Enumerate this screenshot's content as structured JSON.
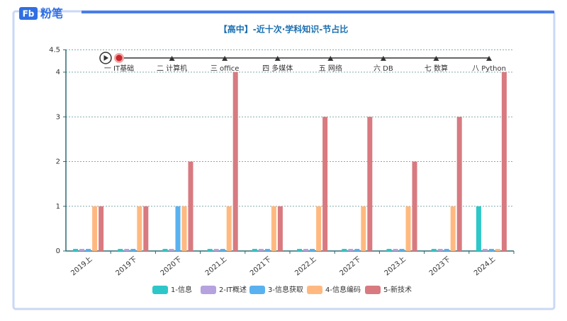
{
  "logo": {
    "mark": "Fb",
    "text": "粉笔"
  },
  "chart_data": {
    "type": "bar",
    "title": "【高中】-近十次·学科知识-节占比",
    "timeline": [
      "一 IT基础",
      "二 计算机",
      "三 office",
      "四 多媒体",
      "五 网络",
      "六 DB",
      "七 数算",
      "八 Python"
    ],
    "categories": [
      "2019上",
      "2019下",
      "2020下",
      "2021上",
      "2021下",
      "2022上",
      "2022下",
      "2023上",
      "2023下",
      "2024上"
    ],
    "series": [
      {
        "name": "1-信息",
        "color": "#2ec7c9",
        "values": [
          0,
          0,
          0,
          0,
          0,
          0,
          0,
          0,
          0,
          1
        ]
      },
      {
        "name": "2-IT概述",
        "color": "#b6a2de",
        "values": [
          0,
          0,
          0,
          0,
          0,
          0,
          0,
          0,
          0,
          0
        ]
      },
      {
        "name": "3-信息获取",
        "color": "#5ab1ef",
        "values": [
          0,
          0,
          1,
          0,
          0,
          0,
          0,
          0,
          0,
          0
        ]
      },
      {
        "name": "4-信息编码",
        "color": "#ffb980",
        "values": [
          1,
          1,
          1,
          1,
          1,
          1,
          1,
          1,
          1,
          0
        ]
      },
      {
        "name": "5-新技术",
        "color": "#d87a80",
        "values": [
          1,
          1,
          2,
          4,
          1,
          3,
          3,
          2,
          3,
          4
        ]
      }
    ],
    "ylim": [
      0,
      4.5
    ],
    "yticks": [
      0,
      1,
      2,
      3,
      4,
      4.5
    ],
    "grid": true
  }
}
